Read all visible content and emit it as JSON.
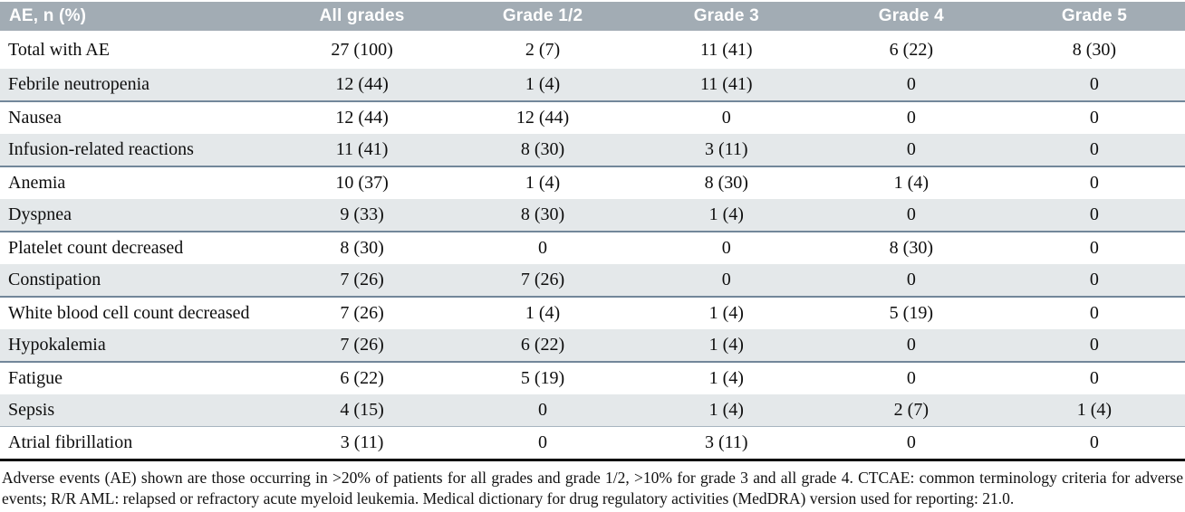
{
  "colors": {
    "header_bg": "#a2acb4",
    "stripe_bg": "#e4e8ea",
    "separator": "#72879a",
    "separator_light": "#a8b5bf",
    "bottom_border": "#0d0d0d",
    "header_text": "#ffffff",
    "body_text": "#0e0e0e"
  },
  "table": {
    "columns": [
      {
        "id": "ae",
        "label": "AE, n (%)"
      },
      {
        "id": "all-grades",
        "label": "All grades"
      },
      {
        "id": "grade-1-2",
        "label": "Grade 1/2"
      },
      {
        "id": "grade-3",
        "label": "Grade 3"
      },
      {
        "id": "grade-4",
        "label": "Grade 4"
      },
      {
        "id": "grade-5",
        "label": "Grade 5"
      }
    ],
    "rows": [
      {
        "label": "Total with AE",
        "values": [
          "27 (100)",
          "2 (7)",
          "11 (41)",
          "6 (22)",
          "8 (30)"
        ]
      },
      {
        "label": "Febrile neutropenia",
        "values": [
          "12 (44)",
          "1 (4)",
          "11 (41)",
          "0",
          "0"
        ]
      },
      {
        "label": "Nausea",
        "values": [
          "12 (44)",
          "12 (44)",
          "0",
          "0",
          "0"
        ]
      },
      {
        "label": "Infusion-related reactions",
        "values": [
          "11 (41)",
          "8 (30)",
          "3 (11)",
          "0",
          "0"
        ]
      },
      {
        "label": "Anemia",
        "values": [
          "10 (37)",
          "1 (4)",
          "8 (30)",
          "1 (4)",
          "0"
        ]
      },
      {
        "label": "Dyspnea",
        "values": [
          "9 (33)",
          "8 (30)",
          "1 (4)",
          "0",
          "0"
        ]
      },
      {
        "label": "Platelet count decreased",
        "values": [
          "8 (30)",
          "0",
          "0",
          "8 (30)",
          "0"
        ]
      },
      {
        "label": "Constipation",
        "values": [
          "7 (26)",
          "7 (26)",
          "0",
          "0",
          "0"
        ]
      },
      {
        "label": "White blood cell count decreased",
        "values": [
          "7 (26)",
          "1 (4)",
          "1 (4)",
          "5 (19)",
          "0"
        ]
      },
      {
        "label": "Hypokalemia",
        "values": [
          "7 (26)",
          "6 (22)",
          "1 (4)",
          "0",
          "0"
        ]
      },
      {
        "label": "Fatigue",
        "values": [
          "6 (22)",
          "5 (19)",
          "1 (4)",
          "0",
          "0"
        ]
      },
      {
        "label": "Sepsis",
        "values": [
          "4 (15)",
          "0",
          "1 (4)",
          "2 (7)",
          "1 (4)"
        ]
      },
      {
        "label": "Atrial fibrillation",
        "values": [
          "3 (11)",
          "0",
          "3 (11)",
          "0",
          "0"
        ]
      }
    ]
  },
  "footnote": {
    "text": "Adverse events (AE) shown are those occurring in >20% of patients for all grades and grade 1/2, >10% for grade 3 and all grade 4. CTCAE: common terminology criteria for adverse events; R/R AML: relapsed or refractory acute myeloid leukemia. Medical dictionary for drug regulatory activities (MedDRA) version used for reporting: 21.0."
  }
}
